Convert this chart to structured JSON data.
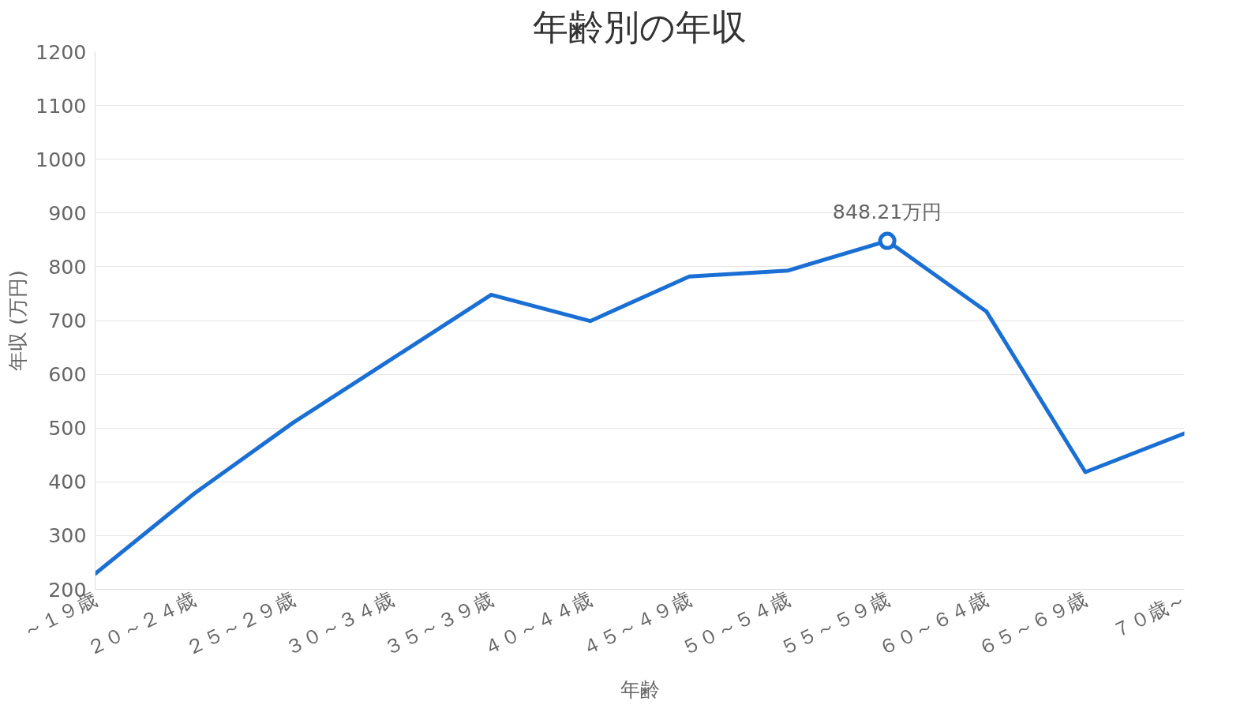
{
  "chart_data": {
    "type": "line",
    "title": "年齢別の年収",
    "xlabel": "年齢",
    "ylabel": "年収 (万円)",
    "categories": [
      "～１９歳",
      "２０～２４歳",
      "２５～２９歳",
      "３０～３４歳",
      "３５～３９歳",
      "４０～４４歳",
      "４５～４９歳",
      "５０～５４歳",
      "５５～５９歳",
      "６０～６４歳",
      "６５～６９歳",
      "７０歳～"
    ],
    "series": [
      {
        "color": "#1a6fd4",
        "values": [
          229,
          378,
          510,
          629,
          748,
          699,
          782,
          793,
          848.21,
          717,
          418,
          490
        ]
      }
    ],
    "ylim": [
      200,
      1200
    ],
    "yticks": [
      200,
      300,
      400,
      500,
      600,
      700,
      800,
      900,
      1000,
      1100,
      1200
    ],
    "grid": "y",
    "annotations": [
      {
        "text": "848.21万円",
        "x": "５５～５９歳",
        "y": 848.21
      }
    ]
  }
}
